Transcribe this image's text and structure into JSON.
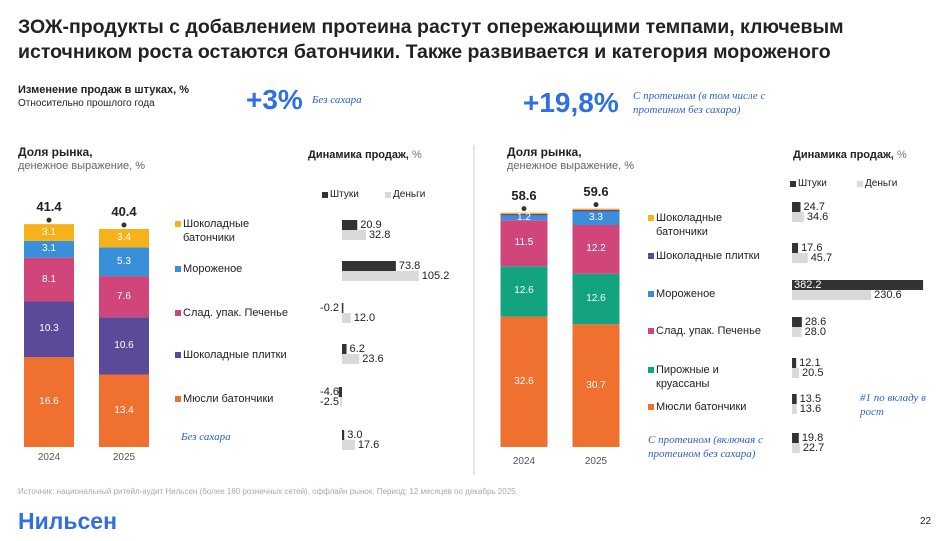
{
  "header": {
    "title": "ЗОЖ-продукты с добавлением протеина растут опережающими темпами, ключевым источником роста остаются батончики. Также развивается и категория мороженого",
    "metric": "Изменение продаж в штуках, %",
    "metric_note": "Относительно прошлого года"
  },
  "kpis": [
    {
      "value": 3,
      "label": "+3%",
      "note": "Без сахара"
    },
    {
      "value": 19.8,
      "label": "+19,8%",
      "note": "С протеином (в том числе с протеином без сахара)"
    }
  ],
  "chart_data": [
    {
      "type": "stacked_bar",
      "title": "Доля рынка,",
      "subtitle": "денежное выражение, %",
      "categories": [
        "2024",
        "2025"
      ],
      "totals": [
        41.4,
        40.4
      ],
      "ylim": [
        0,
        44
      ],
      "series": [
        {
          "name": "Мюсли батончики",
          "color": "#f07030",
          "values": [
            16.6,
            13.4
          ]
        },
        {
          "name": "Шоколадные плитки",
          "color": "#5b4a9a",
          "values": [
            10.3,
            10.6
          ]
        },
        {
          "name": "Слад. упак. Печенье",
          "color": "#d0457a",
          "values": [
            8.1,
            7.6
          ]
        },
        {
          "name": "Мороженое",
          "color": "#3a8fdb",
          "values": [
            3.1,
            5.3
          ]
        },
        {
          "name": "Шоколадные батончики",
          "color": "#f5b21a",
          "values": [
            3.1,
            3.4
          ]
        }
      ]
    },
    {
      "type": "hbar",
      "title": "Динамика продаж,",
      "unit": "%",
      "categories": [
        null,
        null,
        null,
        null,
        null,
        "Без сахара"
      ],
      "xlim": [
        -30,
        120
      ],
      "series": [
        {
          "name": "Штуки",
          "color": "#333333",
          "values": [
            20.9,
            73.8,
            -0.2,
            6.2,
            -4.6,
            3.0
          ],
          "value_labels": [
            "20.9",
            "73.8",
            "-0.2",
            "6.2",
            "-4.6",
            "3.0"
          ]
        },
        {
          "name": "Деньги",
          "color": "#d9d9d9",
          "values": [
            32.8,
            105.2,
            12.0,
            23.6,
            -2.5,
            17.6
          ],
          "value_labels": [
            "32.8",
            "105.2",
            "12.0",
            "23.6",
            "-2.5",
            "17.6"
          ]
        }
      ]
    },
    {
      "type": "stacked_bar",
      "title": "Доля рынка,",
      "subtitle": "денежное выражение, %",
      "categories": [
        "2024",
        "2025"
      ],
      "totals": [
        58.6,
        59.6
      ],
      "ylim": [
        0,
        60
      ],
      "series": [
        {
          "name": "Мюсли батончики",
          "color": "#f07030",
          "values": [
            32.6,
            30.7
          ]
        },
        {
          "name": "Пирожные и круассаны",
          "color": "#14a37f",
          "values": [
            12.6,
            12.6
          ]
        },
        {
          "name": "Слад. упак. Печенье",
          "color": "#d0457a",
          "values": [
            11.5,
            12.2
          ]
        },
        {
          "name": "Мороженое",
          "color": "#3a8fdb",
          "values": [
            1.2,
            3.3
          ]
        },
        {
          "name": "Шоколадные плитки",
          "color": "#5b4a9a",
          "values": [
            0.4,
            0.5
          ],
          "show_labels": false
        },
        {
          "name": "Шоколадные батончики",
          "color": "#f5b21a",
          "values": [
            0.3,
            0.3
          ],
          "show_labels": false
        }
      ]
    },
    {
      "type": "hbar",
      "title": "Динамика продаж,",
      "unit": "%",
      "categories": [
        null,
        null,
        null,
        null,
        null,
        null,
        "С протеином (включая с протеином без сахара)"
      ],
      "xlim": [
        -10,
        400
      ],
      "annotation": "#1 по вкладу в рост",
      "series": [
        {
          "name": "Штуки",
          "color": "#333333",
          "values": [
            24.7,
            17.6,
            382.2,
            28.6,
            12.1,
            13.5,
            19.8
          ]
        },
        {
          "name": "Деньги",
          "color": "#d9d9d9",
          "values": [
            34.6,
            45.7,
            230.6,
            28.0,
            20.5,
            13.6,
            22.7
          ],
          "value_labels": [
            "34.6",
            "45.7",
            "230.6",
            "28.0",
            "20.5",
            "13.6",
            "22.7"
          ]
        }
      ]
    }
  ],
  "footer": {
    "source": "Источник: национальный ритейл-аудит Нильсен (более 180 розничных сетей), оффлайн рынок. Период: 12 месяцев по декабрь 2025.",
    "logo": "Нильсен",
    "page": "22"
  }
}
